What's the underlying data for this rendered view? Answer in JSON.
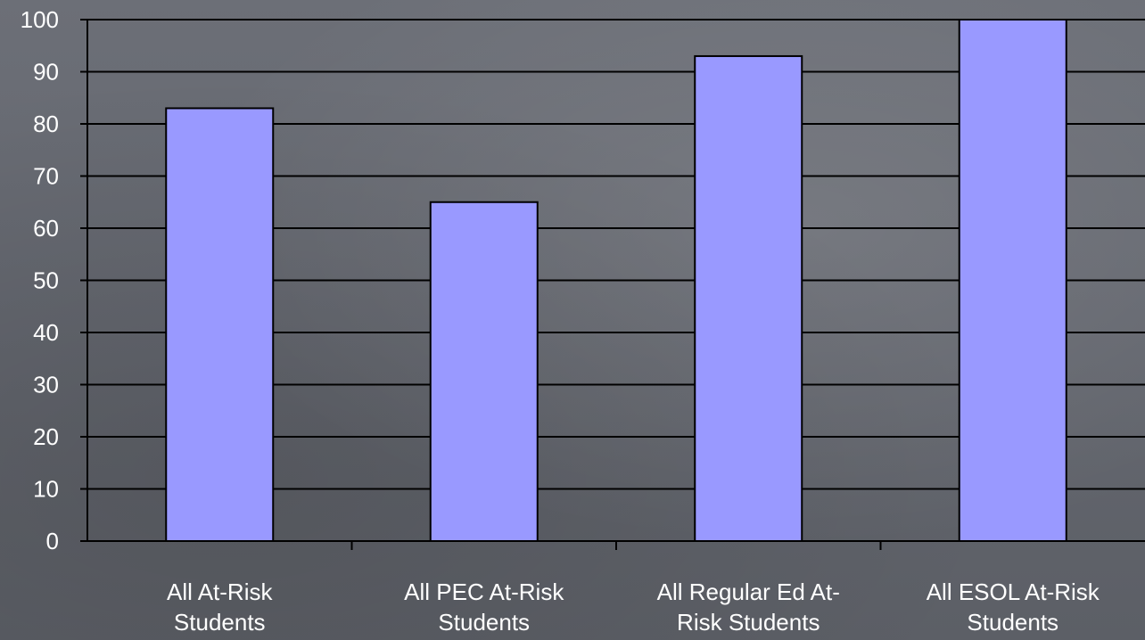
{
  "chart_data": {
    "type": "bar",
    "title": "",
    "xlabel": "",
    "ylabel": "",
    "categories": [
      [
        "All At-Risk",
        "Students"
      ],
      [
        "All PEC At-Risk",
        "Students"
      ],
      [
        "All Regular Ed At-",
        "Risk Students"
      ],
      [
        "All ESOL At-Risk",
        "Students"
      ]
    ],
    "values": [
      83,
      65,
      93,
      100
    ],
    "ylim": [
      0,
      100
    ],
    "yticks": [
      "0",
      "10",
      "20",
      "30",
      "40",
      "50",
      "60",
      "70",
      "80",
      "90",
      "100"
    ],
    "grid": true,
    "legend": "none",
    "colors": {
      "bar_fill": "#9999ff",
      "bar_stroke": "#000000",
      "gridline": "#000000",
      "text": "#ffffff"
    }
  }
}
